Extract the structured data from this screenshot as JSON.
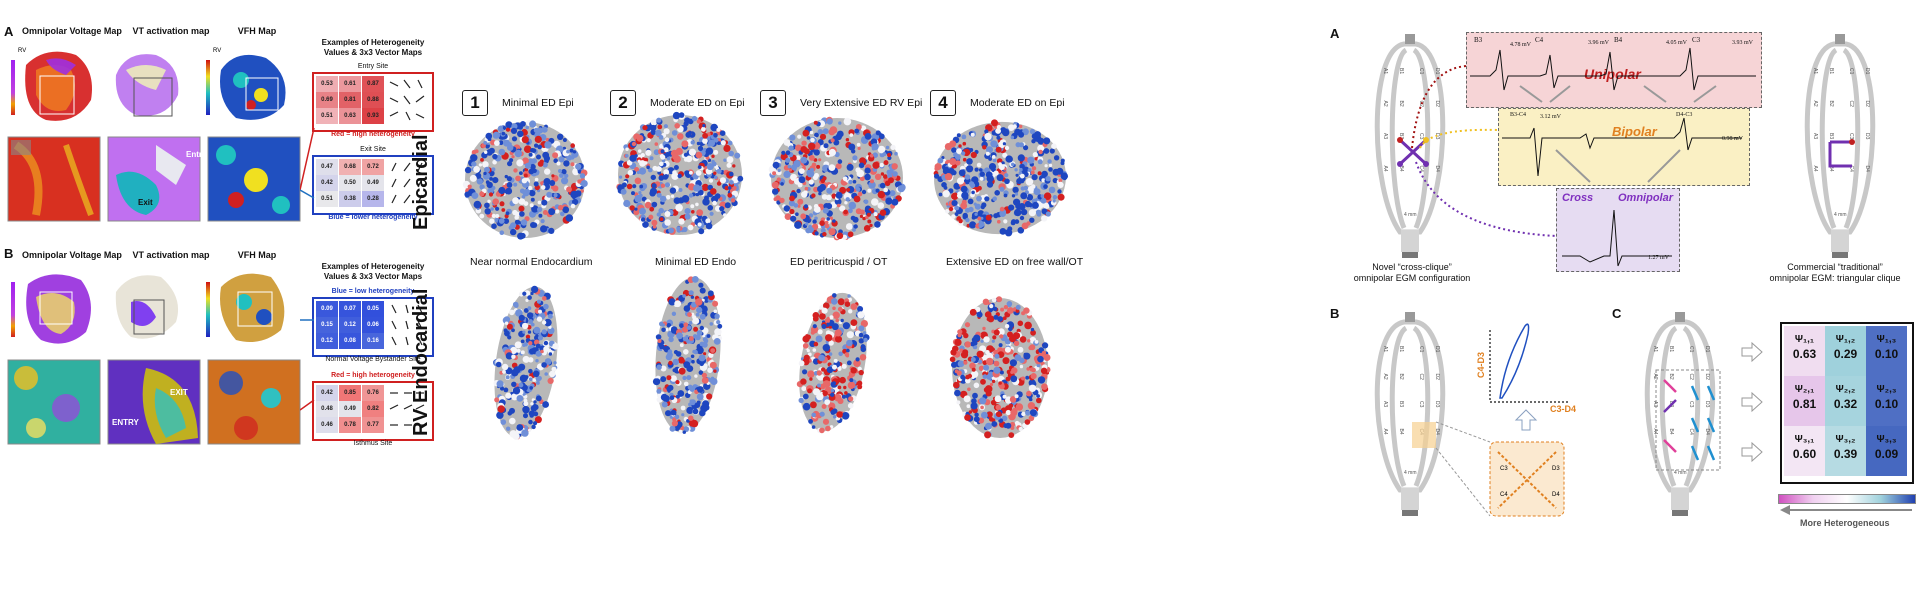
{
  "left": {
    "a_label": "A",
    "b_label": "B",
    "rowA": {
      "map_titles": [
        "Omnipolar Voltage Map",
        "VT activation map",
        "VFH Map"
      ],
      "rv": "RV",
      "rv2": "RV",
      "examples_title": "Examples of Heterogeneity Values & 3x3 Vector Maps",
      "entry_label": "Entry",
      "exit_label": "Exit",
      "entry_site": "Entry Site",
      "exit_site": "Exit Site",
      "red_caption": "Red = high heterogeneity",
      "blue_caption": "Blue = lower heterogeneity",
      "entry_values": [
        "0.53",
        "0.61",
        "0.87",
        "0.69",
        "0.81",
        "0.88",
        "0.51",
        "0.63",
        "0.93"
      ],
      "exit_values": [
        "0.47",
        "0.68",
        "0.72",
        "0.42",
        "0.50",
        "0.49",
        "0.51",
        "0.38",
        "0.28"
      ]
    },
    "rowB": {
      "map_titles": [
        "Omnipolar Voltage Map",
        "VT activation map",
        "VFH  Map"
      ],
      "examples_title": "Examples of Heterogeneity Values & 3x3 Vector Maps",
      "blue_caption": "Blue = low heterogeneity",
      "red_caption": "Red = high heterogeneity",
      "bystander_site": "Normal Voltage Bystander Site",
      "isthmus_site": "Isthmus Site",
      "exit_label": "EXIT",
      "entry_label": "ENTRY",
      "bystander_values": [
        "0.09",
        "0.07",
        "0.05",
        "0.15",
        "0.12",
        "0.06",
        "0.12",
        "0.08",
        "0.16"
      ],
      "isthmus_values": [
        "0.42",
        "0.85",
        "0.76",
        "0.48",
        "0.49",
        "0.82",
        "0.46",
        "0.78",
        "0.77"
      ]
    }
  },
  "middle": {
    "epicardial_label": "Epicardial",
    "endocardial_label": "RV Endocardial",
    "top": [
      {
        "num": "1",
        "label": "Minimal ED Epi"
      },
      {
        "num": "2",
        "label": "Moderate ED on Epi"
      },
      {
        "num": "3",
        "label": "Very Extensive ED RV Epi"
      },
      {
        "num": "4",
        "label": "Moderate ED on Epi"
      }
    ],
    "bottom": [
      "Near normal Endocardium",
      "Minimal ED Endo",
      "ED peritricuspid / OT",
      "Extensive ED on free wall/OT"
    ]
  },
  "right": {
    "a_label": "A",
    "b_label": "B",
    "c_label": "C",
    "unipolar": "Unipolar",
    "bipolar": "Bipolar",
    "cross": "Cross",
    "omnipolar": "Omnipolar",
    "uni_channels": [
      "B3",
      "C4",
      "B4",
      "C3"
    ],
    "uni_mv": [
      "4.78 mV",
      "3.96 mV",
      "4.05 mV",
      "3.93 mV"
    ],
    "bi_channels": [
      "B3-C4",
      "D4-C3"
    ],
    "bi_mv": [
      "3.12 mV",
      "0.98 mV"
    ],
    "omni_mv": "1.27 mV",
    "novel_caption_1": "Novel “cross-clique”",
    "novel_caption_2": "omnipolar EGM configuration",
    "comm_caption_1": "Commercial “traditional”",
    "comm_caption_2": "omnipolar EGM: triangular clique",
    "axis_y": "C4-D3",
    "axis_x": "C3-D4",
    "spline_labels_left": [
      "A1",
      "A2",
      "A3",
      "A4"
    ],
    "spline_labels_mid": [
      "B1",
      "B2",
      "B3",
      "B4"
    ],
    "spline_labels_c": [
      "C1",
      "C2",
      "C3",
      "C4"
    ],
    "spline_labels_d": [
      "D1",
      "D2",
      "D3",
      "D4"
    ],
    "cross_labels": [
      "C3",
      "D3",
      "C4",
      "D4"
    ],
    "mm_label": "4 mm",
    "heatmap": {
      "symbols": [
        "Ψ₁,₁",
        "Ψ₁,₂",
        "Ψ₁,₃",
        "Ψ₂,₁",
        "Ψ₂,₂",
        "Ψ₂,₃",
        "Ψ₃,₁",
        "Ψ₃,₂",
        "Ψ₃,₃"
      ],
      "values": [
        "0.63",
        "0.29",
        "0.10",
        "0.81",
        "0.32",
        "0.10",
        "0.60",
        "0.39",
        "0.09"
      ],
      "colors": [
        "#f0ddf0",
        "#9fd1dc",
        "#4f6fc4",
        "#e6c6ea",
        "#a6d4de",
        "#4f6fc4",
        "#f3e6f4",
        "#b6dbe3",
        "#4668c0"
      ]
    },
    "more_hetero": "More Heterogeneous"
  }
}
